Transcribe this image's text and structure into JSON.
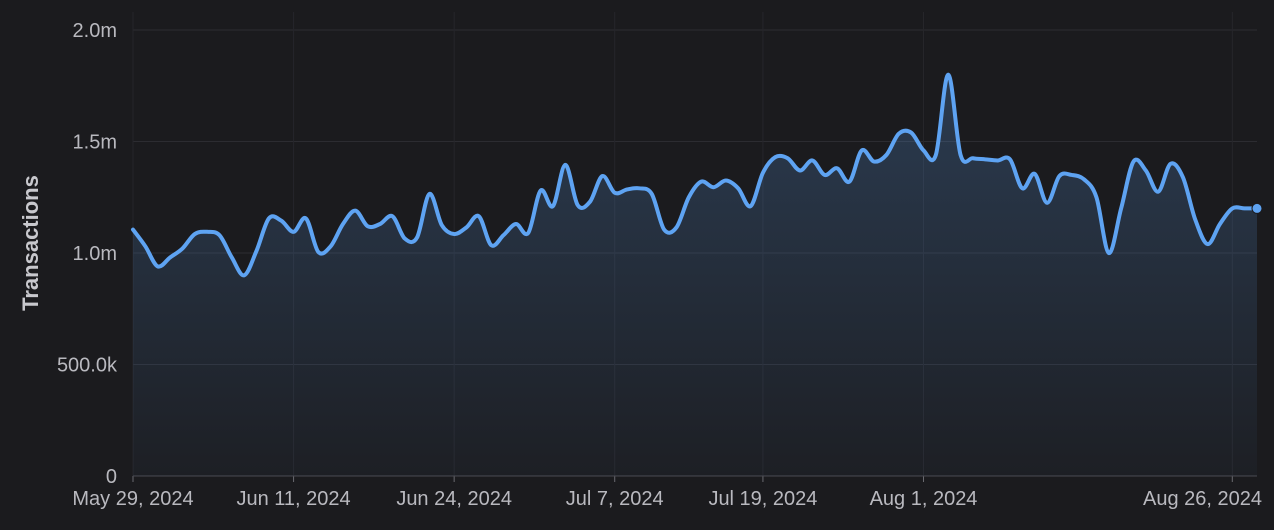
{
  "chart_data": {
    "type": "area",
    "title": "",
    "xlabel": "",
    "ylabel": "Transactions",
    "ylim": [
      0,
      2000000
    ],
    "xlim": [
      "2024-05-29",
      "2024-08-28"
    ],
    "grid": true,
    "legend": "none",
    "y_ticks": [
      {
        "value": 0,
        "label": "0"
      },
      {
        "value": 500000,
        "label": "500.0k"
      },
      {
        "value": 1000000,
        "label": "1.0m"
      },
      {
        "value": 1500000,
        "label": "1.5m"
      },
      {
        "value": 2000000,
        "label": "2.0m"
      }
    ],
    "x_ticks": [
      {
        "value": "2024-05-29",
        "label": "May 29, 2024"
      },
      {
        "value": "2024-06-11",
        "label": "Jun 11, 2024"
      },
      {
        "value": "2024-06-24",
        "label": "Jun 24, 2024"
      },
      {
        "value": "2024-07-07",
        "label": "Jul 7, 2024"
      },
      {
        "value": "2024-07-19",
        "label": "Jul 19, 2024"
      },
      {
        "value": "2024-08-01",
        "label": "Aug 1, 2024"
      },
      {
        "value": "2024-08-26",
        "label": "Aug 26, 2024"
      }
    ],
    "series": [
      {
        "color": "#5ea3f2",
        "x": [
          "2024-05-29",
          "2024-05-30",
          "2024-05-31",
          "2024-06-01",
          "2024-06-02",
          "2024-06-03",
          "2024-06-04",
          "2024-06-05",
          "2024-06-06",
          "2024-06-07",
          "2024-06-08",
          "2024-06-09",
          "2024-06-10",
          "2024-06-11",
          "2024-06-12",
          "2024-06-13",
          "2024-06-14",
          "2024-06-15",
          "2024-06-16",
          "2024-06-17",
          "2024-06-18",
          "2024-06-19",
          "2024-06-20",
          "2024-06-21",
          "2024-06-22",
          "2024-06-23",
          "2024-06-24",
          "2024-06-25",
          "2024-06-26",
          "2024-06-27",
          "2024-06-28",
          "2024-06-29",
          "2024-06-30",
          "2024-07-01",
          "2024-07-02",
          "2024-07-03",
          "2024-07-04",
          "2024-07-05",
          "2024-07-06",
          "2024-07-07",
          "2024-07-08",
          "2024-07-09",
          "2024-07-10",
          "2024-07-11",
          "2024-07-12",
          "2024-07-13",
          "2024-07-14",
          "2024-07-15",
          "2024-07-16",
          "2024-07-17",
          "2024-07-18",
          "2024-07-19",
          "2024-07-20",
          "2024-07-21",
          "2024-07-22",
          "2024-07-23",
          "2024-07-24",
          "2024-07-25",
          "2024-07-26",
          "2024-07-27",
          "2024-07-28",
          "2024-07-29",
          "2024-07-30",
          "2024-07-31",
          "2024-08-01",
          "2024-08-02",
          "2024-08-03",
          "2024-08-04",
          "2024-08-05",
          "2024-08-06",
          "2024-08-07",
          "2024-08-08",
          "2024-08-09",
          "2024-08-10",
          "2024-08-11",
          "2024-08-12",
          "2024-08-13",
          "2024-08-14",
          "2024-08-15",
          "2024-08-16",
          "2024-08-17",
          "2024-08-18",
          "2024-08-19",
          "2024-08-20",
          "2024-08-21",
          "2024-08-22",
          "2024-08-23",
          "2024-08-24",
          "2024-08-25",
          "2024-08-26",
          "2024-08-27",
          "2024-08-28"
        ],
        "values": [
          1105000,
          1030000,
          940000,
          980000,
          1020000,
          1085000,
          1095000,
          1080000,
          980000,
          900000,
          1010000,
          1155000,
          1145000,
          1095000,
          1155000,
          1005000,
          1030000,
          1130000,
          1190000,
          1120000,
          1130000,
          1165000,
          1065000,
          1070000,
          1265000,
          1125000,
          1085000,
          1115000,
          1165000,
          1035000,
          1080000,
          1130000,
          1090000,
          1280000,
          1210000,
          1395000,
          1215000,
          1230000,
          1345000,
          1270000,
          1285000,
          1290000,
          1265000,
          1105000,
          1115000,
          1250000,
          1320000,
          1295000,
          1325000,
          1290000,
          1210000,
          1360000,
          1430000,
          1425000,
          1370000,
          1415000,
          1350000,
          1380000,
          1320000,
          1460000,
          1410000,
          1440000,
          1535000,
          1540000,
          1460000,
          1440000,
          1800000,
          1440000,
          1425000,
          1420000,
          1415000,
          1420000,
          1290000,
          1355000,
          1225000,
          1345000,
          1350000,
          1330000,
          1250000,
          1000000,
          1200000,
          1410000,
          1370000,
          1275000,
          1400000,
          1340000,
          1150000,
          1040000,
          1130000,
          1200000,
          1200000,
          1200000
        ]
      }
    ]
  }
}
